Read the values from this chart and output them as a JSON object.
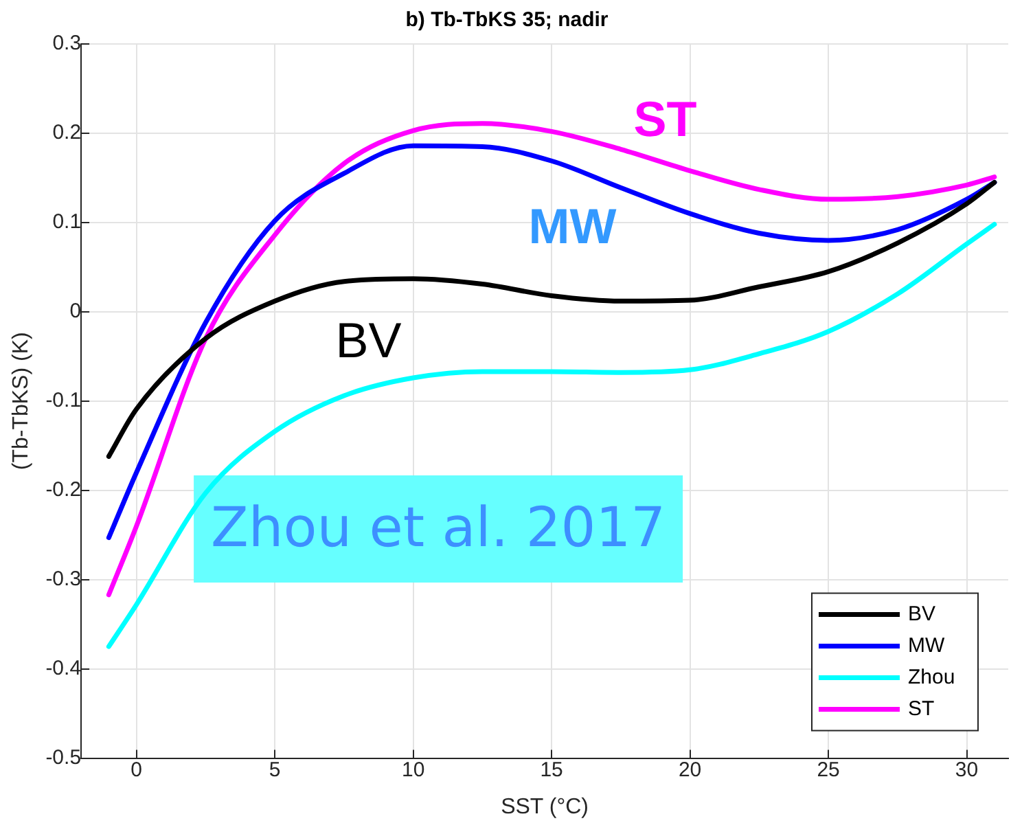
{
  "chart_data": {
    "type": "line",
    "title": "b) Tb-TbKS 35; nadir",
    "xlabel": "SST (°C)",
    "ylabel": "(Tb-TbKS) (K)",
    "x": [
      -1,
      0,
      2.5,
      5,
      7.5,
      10,
      12.5,
      15,
      17.5,
      20,
      22.5,
      25,
      27.5,
      30,
      31
    ],
    "series": [
      {
        "name": "BV",
        "color": "#000000",
        "values": [
          -0.162,
          -0.109,
          -0.03,
          0.012,
          0.034,
          0.037,
          0.031,
          0.018,
          0.012,
          0.013,
          0.028,
          0.045,
          0.077,
          0.121,
          0.145
        ]
      },
      {
        "name": "MW",
        "color": "#0000ff",
        "values": [
          -0.253,
          -0.18,
          -0.012,
          0.102,
          0.155,
          0.186,
          0.185,
          0.169,
          0.139,
          0.11,
          0.088,
          0.08,
          0.092,
          0.126,
          0.145
        ]
      },
      {
        "name": "Zhou",
        "color": "#00ffff",
        "values": [
          -0.375,
          -0.328,
          -0.203,
          -0.134,
          -0.094,
          -0.074,
          -0.067,
          -0.067,
          -0.068,
          -0.065,
          -0.047,
          -0.022,
          0.02,
          0.076,
          0.098
        ]
      },
      {
        "name": "ST",
        "color": "#ff00ff",
        "values": [
          -0.317,
          -0.24,
          -0.03,
          0.086,
          0.166,
          0.203,
          0.211,
          0.202,
          0.182,
          0.158,
          0.137,
          0.126,
          0.129,
          0.142,
          0.151
        ]
      }
    ],
    "xlim": [
      -2,
      31.5
    ],
    "xticks": [
      0,
      5,
      10,
      15,
      20,
      25,
      30
    ],
    "ylim": [
      -0.5,
      0.3
    ],
    "yticks": [
      -0.5,
      -0.4,
      -0.3,
      -0.2,
      -0.1,
      0,
      0.1,
      0.2,
      0.3
    ],
    "grid": true,
    "legend": "bottom right",
    "marker": "none",
    "line_style": "solid",
    "annotations": [
      "BV",
      "MW",
      "ST",
      "Zhou et al. 2017"
    ]
  }
}
